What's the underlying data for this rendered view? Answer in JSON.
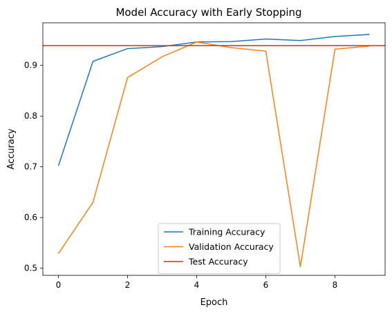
{
  "chart_data": {
    "type": "line",
    "title": "Model Accuracy with Early Stopping",
    "xlabel": "Epoch",
    "ylabel": "Accuracy",
    "x": [
      0,
      1,
      2,
      3,
      4,
      5,
      6,
      7,
      8,
      9
    ],
    "xlim": [
      -0.45,
      9.45
    ],
    "ylim": [
      0.486,
      0.984
    ],
    "xticks": [
      0,
      2,
      4,
      6,
      8
    ],
    "yticks": [
      0.5,
      0.6,
      0.7,
      0.8,
      0.9
    ],
    "series": [
      {
        "name": "Training Accuracy",
        "color": "#1f77b4",
        "values": [
          0.702,
          0.908,
          0.933,
          0.937,
          0.946,
          0.947,
          0.952,
          0.949,
          0.957,
          0.961
        ]
      },
      {
        "name": "Validation Accuracy",
        "color": "#ff7f0e",
        "values": [
          0.529,
          0.63,
          0.876,
          0.917,
          0.946,
          0.935,
          0.928,
          0.503,
          0.932,
          0.938
        ]
      }
    ],
    "hlines": [
      {
        "name": "Test Accuracy",
        "color": "#d62728",
        "value": 0.939
      }
    ],
    "legend": "lower-center",
    "grid": false
  }
}
